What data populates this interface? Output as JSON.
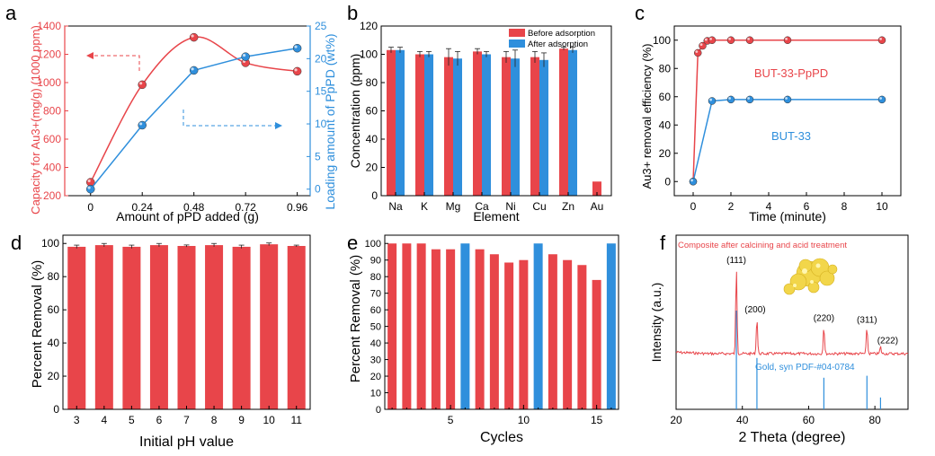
{
  "colors": {
    "red": "#e8454a",
    "blue": "#2f8fdc",
    "axis": "#000000"
  },
  "chart_data": [
    {
      "panel": "a",
      "type": "line",
      "xlabel": "Amount of pPD added (g)",
      "ylabel_left": "Capacity for Au3+(mg/g) (1000 ppm)",
      "ylabel_right": "Loading amount of PpPD (wt%)",
      "x_ticks": [
        "0",
        "0.24",
        "0.48",
        "0.72",
        "0.96"
      ],
      "y_ticks_left": [
        "200",
        "400",
        "600",
        "800",
        "1000",
        "1200",
        "1400"
      ],
      "y_ticks_right": [
        "0",
        "5",
        "10",
        "15",
        "20",
        "25"
      ],
      "xlim": [
        -0.12,
        1.02
      ],
      "ylim_left": [
        200,
        1400
      ],
      "ylim_right": [
        -1,
        25
      ],
      "series": [
        {
          "axis": "left",
          "color": "red",
          "x": [
            0,
            0.24,
            0.48,
            0.72,
            0.96
          ],
          "values": [
            295,
            985,
            1320,
            1140,
            1080
          ]
        },
        {
          "axis": "right",
          "color": "blue",
          "x": [
            0,
            0.24,
            0.48,
            0.72,
            0.96
          ],
          "values": [
            0,
            9.8,
            18.2,
            20.3,
            21.6
          ]
        }
      ]
    },
    {
      "panel": "b",
      "type": "bar",
      "xlabel": "Element",
      "ylabel": "Concentration (ppm)",
      "categories": [
        "Na",
        "K",
        "Mg",
        "Ca",
        "Ni",
        "Cu",
        "Zn",
        "Au"
      ],
      "y_ticks": [
        "0",
        "20",
        "40",
        "60",
        "80",
        "100",
        "120"
      ],
      "ylim": [
        0,
        120
      ],
      "legend": "top-right",
      "series": [
        {
          "name": "Before adsorption",
          "color": "red",
          "values": [
            103,
            100,
            98,
            102,
            98,
            98,
            104,
            10
          ],
          "err": [
            2,
            2,
            6,
            2,
            4,
            4,
            1,
            0
          ]
        },
        {
          "name": "After adsorption",
          "color": "blue",
          "values": [
            103,
            100,
            97,
            100,
            97,
            96,
            103,
            null
          ],
          "err": [
            2,
            2,
            5,
            2,
            6,
            5,
            2,
            0
          ]
        }
      ]
    },
    {
      "panel": "c",
      "type": "line",
      "xlabel": "Time (minute)",
      "ylabel": "Au3+ removal efficiency (%)",
      "x_ticks": [
        "0",
        "2",
        "4",
        "6",
        "8",
        "10"
      ],
      "y_ticks": [
        "0",
        "20",
        "40",
        "60",
        "80",
        "100"
      ],
      "xlim": [
        -1,
        11
      ],
      "ylim": [
        -10,
        110
      ],
      "annotations": [
        "BUT-33-PpPD",
        "BUT-33"
      ],
      "series": [
        {
          "color": "red",
          "x": [
            0,
            0.25,
            0.5,
            0.75,
            1,
            2,
            3,
            5,
            10
          ],
          "values": [
            0,
            91,
            96,
            99.5,
            100,
            100,
            100,
            100,
            100
          ]
        },
        {
          "color": "blue",
          "x": [
            0,
            1,
            2,
            3,
            5,
            10
          ],
          "values": [
            0,
            57,
            58,
            58,
            58,
            58
          ]
        }
      ]
    },
    {
      "panel": "d",
      "type": "bar",
      "xlabel": "Initial pH value",
      "ylabel": "Percent Removal (%)",
      "categories": [
        "3",
        "4",
        "5",
        "6",
        "7",
        "8",
        "9",
        "10",
        "11"
      ],
      "y_ticks": [
        "0",
        "20",
        "40",
        "60",
        "80",
        "100"
      ],
      "ylim": [
        0,
        105
      ],
      "series": [
        {
          "color": "red",
          "values": [
            98,
            99,
            98,
            99,
            98.5,
            99,
            98,
            99.5,
            98.5
          ],
          "err": [
            1,
            1,
            1,
            1,
            0.6,
            1,
            1,
            0.8,
            0.5
          ]
        }
      ]
    },
    {
      "panel": "e",
      "type": "bar",
      "xlabel": "Cycles",
      "ylabel": "Percent Removal (%)",
      "x_ticks": [
        "5",
        "10",
        "15"
      ],
      "y_ticks": [
        "0",
        "10",
        "20",
        "30",
        "40",
        "50",
        "60",
        "70",
        "80",
        "90",
        "100"
      ],
      "ylim": [
        0,
        105
      ],
      "categories": [
        1,
        2,
        3,
        4,
        5,
        6,
        7,
        8,
        9,
        10,
        11,
        12,
        13,
        14,
        15,
        16
      ],
      "values": [
        100,
        100,
        100,
        96.5,
        96.5,
        100,
        96.5,
        93.5,
        88.5,
        90,
        100,
        93.5,
        90,
        87,
        78,
        100
      ],
      "bar_colors": [
        "red",
        "red",
        "red",
        "red",
        "red",
        "blue",
        "red",
        "red",
        "red",
        "red",
        "blue",
        "red",
        "red",
        "red",
        "red",
        "blue"
      ]
    },
    {
      "panel": "f",
      "type": "line",
      "xlabel": "2 Theta  (degree)",
      "ylabel": "Intensity (a.u.)",
      "x_ticks": [
        "20",
        "40",
        "60",
        "80"
      ],
      "xlim": [
        20,
        90
      ],
      "legend_text": "Composite after calcining and acid treatment",
      "reference_text": "Gold, syn  PDF-#04-0784",
      "peaks": [
        {
          "x": 38.2,
          "label": "(111)",
          "height": 1.0
        },
        {
          "x": 44.4,
          "label": "(200)",
          "height": 0.42
        },
        {
          "x": 64.6,
          "label": "(220)",
          "height": 0.32
        },
        {
          "x": 77.6,
          "label": "(311)",
          "height": 0.3
        },
        {
          "x": 81.7,
          "label": "(222)",
          "height": 0.08
        }
      ],
      "reference_peaks": [
        {
          "x": 38.2,
          "height": 1.0
        },
        {
          "x": 44.4,
          "height": 0.52
        },
        {
          "x": 64.6,
          "height": 0.32
        },
        {
          "x": 77.6,
          "height": 0.34
        },
        {
          "x": 81.7,
          "height": 0.12
        }
      ]
    }
  ]
}
